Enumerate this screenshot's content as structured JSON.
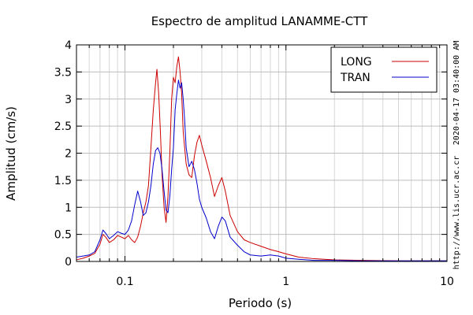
{
  "chart_data": {
    "type": "line",
    "title": "Espectro de amplitud LANAMME-CTT",
    "xlabel": "Periodo (s)",
    "ylabel": "Amplitud (cm/s)",
    "x_scale": "log",
    "xlim": [
      0.05,
      10
    ],
    "ylim": [
      0,
      4
    ],
    "x_ticks": [
      0.1,
      1,
      10
    ],
    "x_tick_labels": [
      "0.1",
      "1",
      "10"
    ],
    "y_ticks": [
      0,
      0.5,
      1,
      1.5,
      2,
      2.5,
      3,
      3.5,
      4
    ],
    "y_tick_labels": [
      "0",
      "0.5",
      "1",
      "1.5",
      "2",
      "2.5",
      "3",
      "3.5",
      "4"
    ],
    "grid": true,
    "legend_position": "top-right",
    "side_labels": [
      "2020-04-17 03:40:00 AM",
      "http://www.lis.ucr.ac.cr"
    ],
    "series": [
      {
        "name": "LONG",
        "color": "#cc0000",
        "points": [
          [
            0.05,
            0.03
          ],
          [
            0.055,
            0.06
          ],
          [
            0.06,
            0.1
          ],
          [
            0.065,
            0.15
          ],
          [
            0.07,
            0.32
          ],
          [
            0.073,
            0.5
          ],
          [
            0.076,
            0.45
          ],
          [
            0.08,
            0.35
          ],
          [
            0.085,
            0.4
          ],
          [
            0.09,
            0.48
          ],
          [
            0.095,
            0.45
          ],
          [
            0.1,
            0.42
          ],
          [
            0.105,
            0.48
          ],
          [
            0.11,
            0.4
          ],
          [
            0.115,
            0.35
          ],
          [
            0.12,
            0.45
          ],
          [
            0.125,
            0.65
          ],
          [
            0.13,
            0.9
          ],
          [
            0.135,
            1.1
          ],
          [
            0.14,
            1.4
          ],
          [
            0.145,
            2.1
          ],
          [
            0.15,
            2.8
          ],
          [
            0.155,
            3.3
          ],
          [
            0.158,
            3.55
          ],
          [
            0.162,
            3.1
          ],
          [
            0.166,
            2.4
          ],
          [
            0.17,
            1.6
          ],
          [
            0.175,
            1.0
          ],
          [
            0.18,
            0.72
          ],
          [
            0.185,
            1.2
          ],
          [
            0.19,
            2.0
          ],
          [
            0.195,
            3.0
          ],
          [
            0.2,
            3.4
          ],
          [
            0.205,
            3.3
          ],
          [
            0.21,
            3.6
          ],
          [
            0.215,
            3.78
          ],
          [
            0.22,
            3.5
          ],
          [
            0.225,
            3.1
          ],
          [
            0.23,
            2.4
          ],
          [
            0.24,
            1.8
          ],
          [
            0.25,
            1.6
          ],
          [
            0.26,
            1.55
          ],
          [
            0.27,
            1.95
          ],
          [
            0.28,
            2.2
          ],
          [
            0.29,
            2.33
          ],
          [
            0.3,
            2.15
          ],
          [
            0.32,
            1.85
          ],
          [
            0.34,
            1.55
          ],
          [
            0.36,
            1.2
          ],
          [
            0.38,
            1.4
          ],
          [
            0.4,
            1.55
          ],
          [
            0.42,
            1.3
          ],
          [
            0.45,
            0.85
          ],
          [
            0.5,
            0.55
          ],
          [
            0.55,
            0.4
          ],
          [
            0.6,
            0.35
          ],
          [
            0.7,
            0.28
          ],
          [
            0.8,
            0.22
          ],
          [
            0.9,
            0.18
          ],
          [
            1.0,
            0.14
          ],
          [
            1.2,
            0.08
          ],
          [
            1.5,
            0.05
          ],
          [
            2.0,
            0.03
          ],
          [
            3.0,
            0.02
          ],
          [
            5.0,
            0.01
          ],
          [
            10.0,
            0.01
          ]
        ]
      },
      {
        "name": "TRAN",
        "color": "#0000cc",
        "points": [
          [
            0.05,
            0.08
          ],
          [
            0.055,
            0.1
          ],
          [
            0.06,
            0.12
          ],
          [
            0.065,
            0.18
          ],
          [
            0.07,
            0.4
          ],
          [
            0.073,
            0.58
          ],
          [
            0.076,
            0.52
          ],
          [
            0.08,
            0.42
          ],
          [
            0.085,
            0.48
          ],
          [
            0.09,
            0.55
          ],
          [
            0.095,
            0.52
          ],
          [
            0.1,
            0.5
          ],
          [
            0.105,
            0.58
          ],
          [
            0.11,
            0.75
          ],
          [
            0.115,
            1.05
          ],
          [
            0.12,
            1.3
          ],
          [
            0.125,
            1.1
          ],
          [
            0.13,
            0.85
          ],
          [
            0.135,
            0.9
          ],
          [
            0.14,
            1.1
          ],
          [
            0.145,
            1.4
          ],
          [
            0.15,
            1.8
          ],
          [
            0.155,
            2.05
          ],
          [
            0.16,
            2.1
          ],
          [
            0.165,
            2.0
          ],
          [
            0.17,
            1.7
          ],
          [
            0.175,
            1.3
          ],
          [
            0.18,
            0.95
          ],
          [
            0.185,
            0.9
          ],
          [
            0.19,
            1.2
          ],
          [
            0.195,
            1.7
          ],
          [
            0.2,
            2.1
          ],
          [
            0.205,
            2.8
          ],
          [
            0.21,
            3.1
          ],
          [
            0.215,
            3.35
          ],
          [
            0.22,
            3.2
          ],
          [
            0.225,
            3.3
          ],
          [
            0.23,
            3.0
          ],
          [
            0.235,
            2.6
          ],
          [
            0.24,
            2.1
          ],
          [
            0.25,
            1.75
          ],
          [
            0.26,
            1.85
          ],
          [
            0.27,
            1.7
          ],
          [
            0.28,
            1.45
          ],
          [
            0.29,
            1.15
          ],
          [
            0.3,
            1.0
          ],
          [
            0.32,
            0.8
          ],
          [
            0.34,
            0.55
          ],
          [
            0.36,
            0.42
          ],
          [
            0.38,
            0.65
          ],
          [
            0.4,
            0.82
          ],
          [
            0.42,
            0.75
          ],
          [
            0.45,
            0.45
          ],
          [
            0.5,
            0.3
          ],
          [
            0.55,
            0.18
          ],
          [
            0.6,
            0.12
          ],
          [
            0.7,
            0.1
          ],
          [
            0.8,
            0.12
          ],
          [
            0.9,
            0.1
          ],
          [
            1.0,
            0.06
          ],
          [
            1.2,
            0.04
          ],
          [
            1.5,
            0.02
          ],
          [
            2.0,
            0.02
          ],
          [
            3.0,
            0.01
          ],
          [
            5.0,
            0.01
          ],
          [
            10.0,
            0.01
          ]
        ]
      }
    ]
  }
}
